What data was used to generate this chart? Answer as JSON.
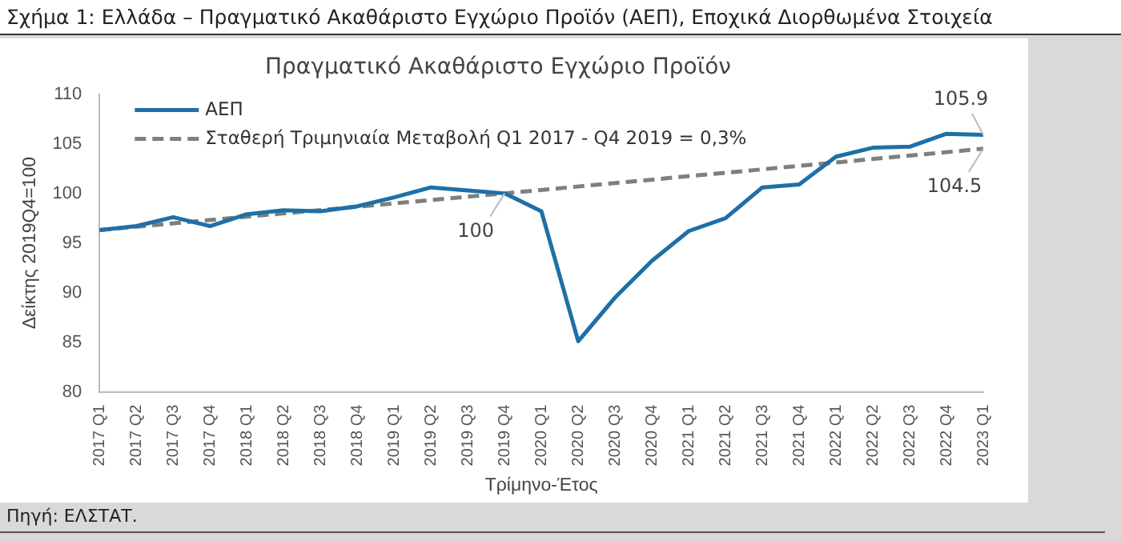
{
  "chart_data": {
    "type": "line",
    "title": "Σχήμα 1: Ελλάδα – Πραγματικό Ακαθάριστο Εγχώριο Προϊόν (ΑΕΠ), Εποχικά Διορθωμένα Στοιχεία",
    "subtitle": "Πραγματικό Ακαθάριστο Εγχώριο Προϊόν",
    "xlabel": "Τρίμηνο-Έτος",
    "ylabel": "Δείκτης 2019Q4=100",
    "categories": [
      "2017 Q1",
      "2017 Q2",
      "2017 Q3",
      "2017 Q4",
      "2018 Q1",
      "2018 Q2",
      "2018 Q3",
      "2018 Q4",
      "2019 Q1",
      "2019 Q2",
      "2019 Q3",
      "2019 Q4",
      "2020 Q1",
      "2020 Q2",
      "2020 Q3",
      "2020 Q4",
      "2021 Q1",
      "2021 Q2",
      "2021 Q3",
      "2021 Q4",
      "2022 Q1",
      "2022 Q2",
      "2022 Q3",
      "2022 Q4",
      "2023 Q1"
    ],
    "series": [
      {
        "name": "ΑΕΠ",
        "color": "#1f6fa8",
        "line_style": "solid",
        "values": [
          96.3,
          96.7,
          97.6,
          96.7,
          97.9,
          98.3,
          98.2,
          98.7,
          99.6,
          100.6,
          100.3,
          100,
          98.2,
          85.1,
          89.5,
          93.2,
          96.2,
          97.5,
          100.6,
          100.9,
          103.7,
          104.6,
          104.7,
          106.0,
          105.9
        ]
      },
      {
        "name": "Σταθερή Τριμηνιαία Μεταβολή Q1 2017 - Q4 2019 = 0,3%",
        "color": "#7f7f7f",
        "line_style": "dashed",
        "values": [
          96.3,
          null,
          null,
          null,
          null,
          null,
          null,
          null,
          null,
          null,
          null,
          100,
          null,
          null,
          null,
          null,
          null,
          null,
          null,
          null,
          null,
          null,
          null,
          null,
          104.5
        ]
      }
    ],
    "ylim": [
      80,
      110
    ],
    "yticks": [
      80,
      85,
      90,
      95,
      100,
      105,
      110
    ],
    "grid": false,
    "legend": "top left",
    "marker": "none",
    "annotations": [
      {
        "text": "100",
        "x": "2019 Q4",
        "y": 100
      },
      {
        "text": "105.9",
        "x": "2023 Q1",
        "y": 105.9
      },
      {
        "text": "104.5",
        "x": "2023 Q1",
        "y": 104.5
      },
      "Πηγή: ΕΛΣΤΑΤ."
    ]
  }
}
